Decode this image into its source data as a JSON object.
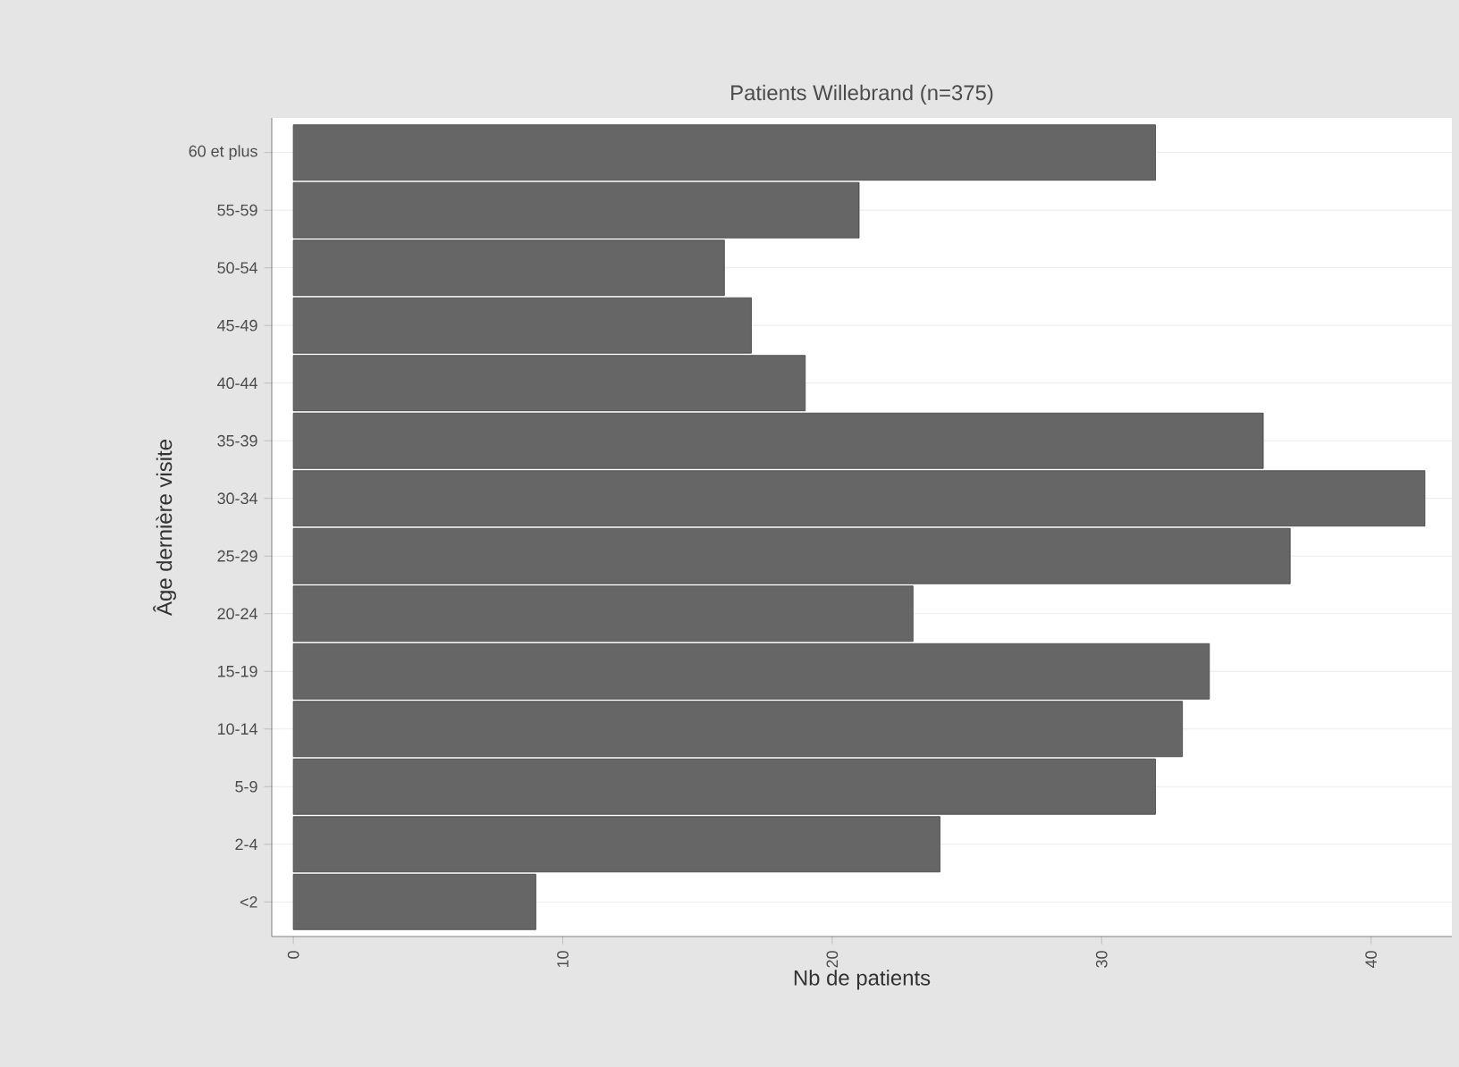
{
  "chart_data": {
    "type": "bar",
    "orientation": "horizontal",
    "title": "Patients Willebrand (n=375)",
    "xlabel": "Nb de patients",
    "ylabel": "Âge dernière visite",
    "categories": [
      "60 et plus",
      "55-59",
      "50-54",
      "45-49",
      "40-44",
      "35-39",
      "30-34",
      "25-29",
      "20-24",
      "15-19",
      "10-14",
      "5-9",
      "2-4",
      "<2"
    ],
    "values": [
      32,
      21,
      16,
      17,
      19,
      36,
      42,
      37,
      23,
      34,
      33,
      32,
      24,
      9
    ],
    "color": "#666666",
    "xlim": [
      -0.8,
      43
    ],
    "xticks": [
      0,
      10,
      20,
      30,
      40
    ],
    "grid": "y"
  }
}
